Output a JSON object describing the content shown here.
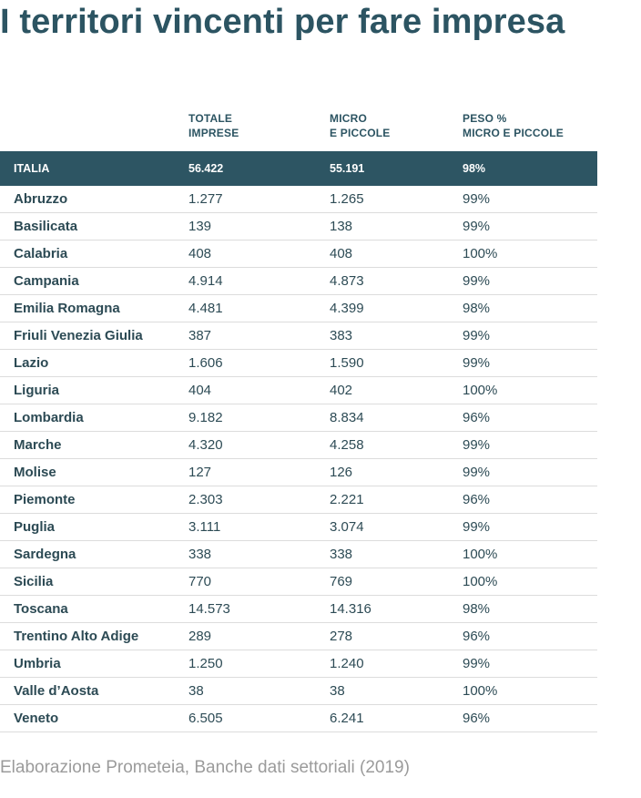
{
  "title": "I territori vincenti per fare impresa",
  "source": "Elaborazione Prometeia, Banche dati settoriali (2019)",
  "colors": {
    "title": "#2c5462",
    "header_band": "#2d5563",
    "text": "#2d4b55",
    "source": "#9b9b9b",
    "row_divider": "#dcdcdc"
  },
  "chart_data": {
    "type": "table",
    "title": "I territori vincenti per fare impresa",
    "columns": [
      {
        "key": "region",
        "label_lines": [
          "",
          ""
        ]
      },
      {
        "key": "totale",
        "label_lines": [
          "TOTALE",
          "IMPRESE"
        ]
      },
      {
        "key": "micro",
        "label_lines": [
          "MICRO",
          "E PICCOLE"
        ]
      },
      {
        "key": "peso",
        "label_lines": [
          "PESO %",
          "MICRO E PICCOLE"
        ]
      }
    ],
    "total_row": {
      "region": "ITALIA",
      "totale": "56.422",
      "micro": "55.191",
      "peso": "98%"
    },
    "rows": [
      {
        "region": "Abruzzo",
        "totale": "1.277",
        "micro": "1.265",
        "peso": "99%"
      },
      {
        "region": "Basilicata",
        "totale": "139",
        "micro": "138",
        "peso": "99%"
      },
      {
        "region": "Calabria",
        "totale": "408",
        "micro": "408",
        "peso": "100%"
      },
      {
        "region": "Campania",
        "totale": "4.914",
        "micro": "4.873",
        "peso": "99%"
      },
      {
        "region": "Emilia Romagna",
        "totale": "4.481",
        "micro": "4.399",
        "peso": "98%"
      },
      {
        "region": "Friuli Venezia Giulia",
        "totale": "387",
        "micro": "383",
        "peso": "99%"
      },
      {
        "region": "Lazio",
        "totale": "1.606",
        "micro": "1.590",
        "peso": "99%"
      },
      {
        "region": "Liguria",
        "totale": "404",
        "micro": "402",
        "peso": "100%"
      },
      {
        "region": "Lombardia",
        "totale": "9.182",
        "micro": "8.834",
        "peso": "96%"
      },
      {
        "region": "Marche",
        "totale": "4.320",
        "micro": "4.258",
        "peso": "99%"
      },
      {
        "region": "Molise",
        "totale": "127",
        "micro": "126",
        "peso": "99%"
      },
      {
        "region": "Piemonte",
        "totale": "2.303",
        "micro": "2.221",
        "peso": "96%"
      },
      {
        "region": "Puglia",
        "totale": "3.111",
        "micro": "3.074",
        "peso": "99%"
      },
      {
        "region": "Sardegna",
        "totale": "338",
        "micro": "338",
        "peso": "100%"
      },
      {
        "region": "Sicilia",
        "totale": "770",
        "micro": "769",
        "peso": "100%"
      },
      {
        "region": "Toscana",
        "totale": "14.573",
        "micro": "14.316",
        "peso": "98%"
      },
      {
        "region": "Trentino Alto Adige",
        "totale": "289",
        "micro": "278",
        "peso": "96%"
      },
      {
        "region": "Umbria",
        "totale": "1.250",
        "micro": "1.240",
        "peso": "99%"
      },
      {
        "region": "Valle d’Aosta",
        "totale": "38",
        "micro": "38",
        "peso": "100%"
      },
      {
        "region": "Veneto",
        "totale": "6.505",
        "micro": "6.241",
        "peso": "96%"
      }
    ]
  }
}
